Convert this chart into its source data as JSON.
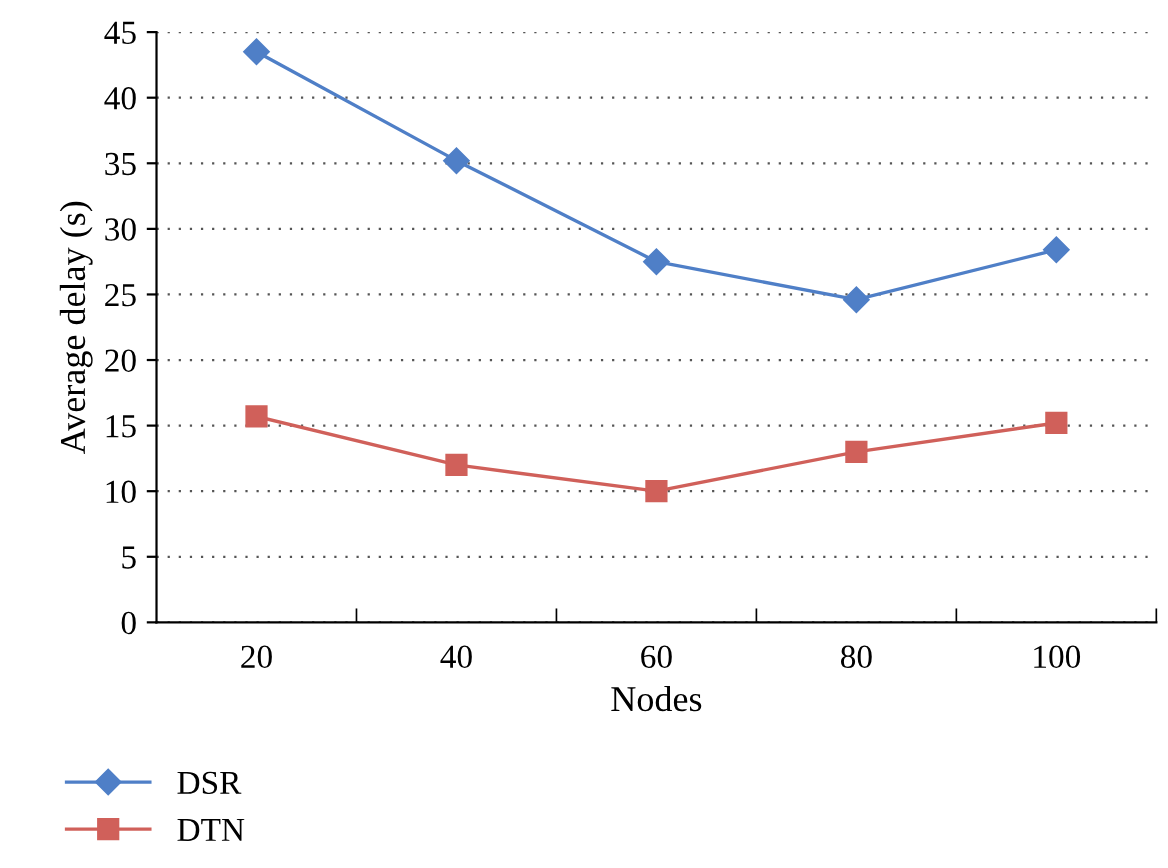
{
  "chart_data": {
    "type": "line",
    "xlabel": "Nodes",
    "ylabel": "Average delay (s)",
    "categories": [
      "20",
      "40",
      "60",
      "80",
      "100"
    ],
    "series": [
      {
        "name": "DSR",
        "color": "#4f7fc7",
        "marker": "diamond",
        "values": [
          43.5,
          35.2,
          27.5,
          24.6,
          28.4
        ]
      },
      {
        "name": "DTN",
        "color": "#d0605a",
        "marker": "square",
        "values": [
          15.7,
          12,
          10,
          13,
          15.2
        ]
      }
    ],
    "ylim": [
      0,
      45
    ],
    "yticks": [
      0,
      5,
      10,
      15,
      20,
      25,
      30,
      35,
      40,
      45
    ],
    "grid": "y",
    "legend": "bottom",
    "line_style": "solid"
  }
}
